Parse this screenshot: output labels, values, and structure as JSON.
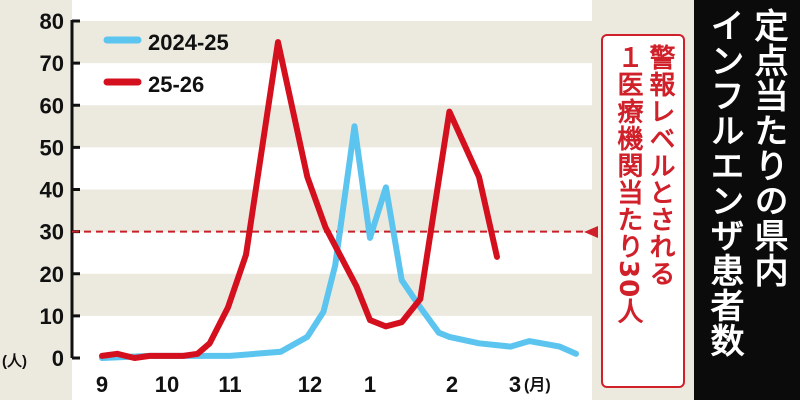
{
  "title": [
    "定点当たりの県内",
    "インフルエンザ患者数"
  ],
  "annotation": [
    "警報レベルとされる",
    "１医療機関当たり30人"
  ],
  "chart_data": {
    "type": "line",
    "title": "定点当たりの県内インフルエンザ患者数",
    "ylabel": "(人)",
    "xlabel": "(月)",
    "ylim": [
      0,
      80
    ],
    "yticks": [
      "0",
      "10",
      "20",
      "30",
      "40",
      "50",
      "60",
      "70",
      "80"
    ],
    "xticks": [
      "9",
      "10",
      "11",
      "12",
      "1",
      "2",
      "3"
    ],
    "x_unit_label": "(月)",
    "y_unit_label": "(人)",
    "grid": "alternating horizontal bands",
    "legend": "top-left",
    "threshold": {
      "value": 30,
      "label": "30",
      "color": "#d0202a"
    },
    "series": [
      {
        "name": "2024-25",
        "color": "#5bc4ef",
        "points": [
          [
            "9/1",
            0
          ],
          [
            "9/23",
            0.5
          ],
          [
            "11/1",
            0.5
          ],
          [
            "11/20",
            1.5
          ],
          [
            "11/30",
            5
          ],
          [
            "12/8",
            11
          ],
          [
            "12/14",
            22
          ],
          [
            "12/24",
            55
          ],
          [
            "1/1",
            28.5
          ],
          [
            "1/7",
            40.5
          ],
          [
            "1/13",
            18.5
          ],
          [
            "1/20",
            12
          ],
          [
            "1/27",
            6
          ],
          [
            "1/31",
            5
          ],
          [
            "2/13",
            3.5
          ],
          [
            "2/27",
            2.7
          ],
          [
            "3/8",
            4
          ],
          [
            "3/23",
            2.7
          ],
          [
            "3/31",
            1
          ]
        ]
      },
      {
        "name": "25-26",
        "color": "#d4101e",
        "points": [
          [
            "9/1",
            0.5
          ],
          [
            "9/8",
            1
          ],
          [
            "9/16",
            0
          ],
          [
            "9/23",
            0.5
          ],
          [
            "10/1",
            0.5
          ],
          [
            "10/9",
            0.5
          ],
          [
            "10/16",
            1
          ],
          [
            "10/22",
            3.5
          ],
          [
            "10/31",
            12
          ],
          [
            "11/7",
            24.5
          ],
          [
            "11/19",
            75
          ],
          [
            "11/30",
            43
          ],
          [
            "12/9",
            31
          ],
          [
            "12/25",
            17
          ],
          [
            "1/1",
            9
          ],
          [
            "1/7",
            7.5
          ],
          [
            "1/13",
            8.5
          ],
          [
            "1/20",
            14
          ],
          [
            "1/31",
            58.5
          ],
          [
            "2/13",
            43
          ],
          [
            "2/21",
            24
          ]
        ]
      }
    ]
  }
}
